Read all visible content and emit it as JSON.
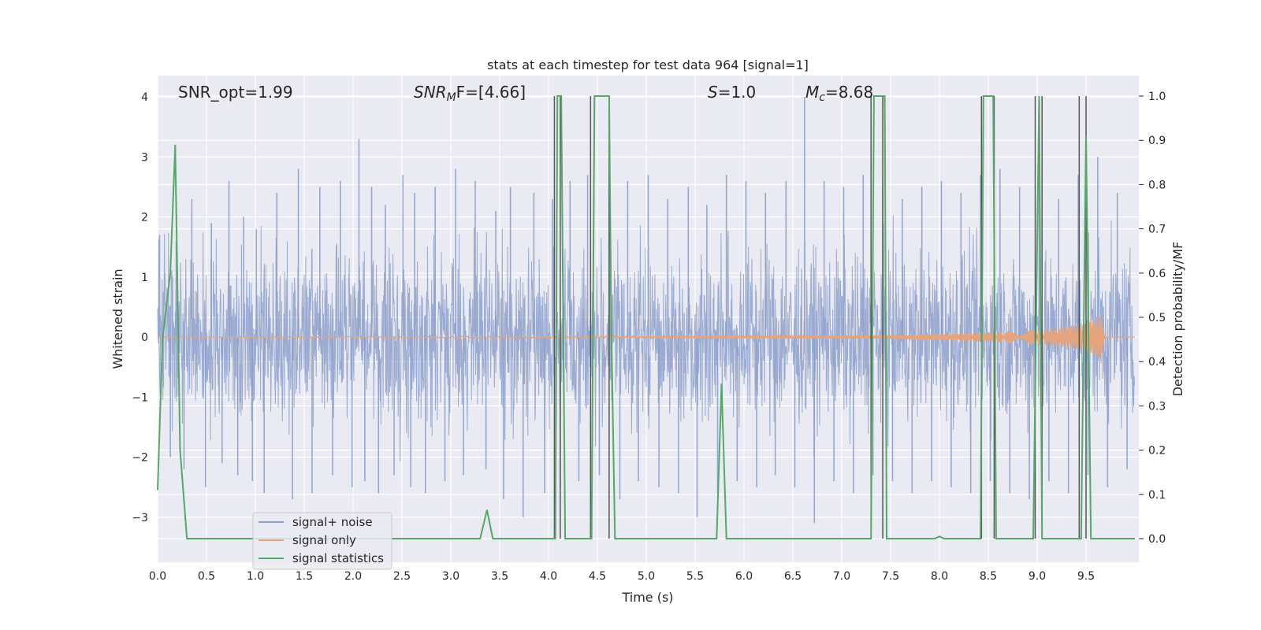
{
  "chart_data": {
    "type": "line",
    "title": "stats at each timestep for test data 964 [signal=1]",
    "xlabel": "Time (s)",
    "ylabel_left": "Whitened strain",
    "ylabel_right": "Detection probability/MF",
    "xlim": [
      0.0,
      10.0
    ],
    "ylim_left": [
      -3.6,
      4.4
    ],
    "ylim_right": [
      -0.05,
      1.05
    ],
    "x_ticks": [
      "0.0",
      "0.5",
      "1.0",
      "1.5",
      "2.0",
      "2.5",
      "3.0",
      "3.5",
      "4.0",
      "4.5",
      "5.0",
      "5.5",
      "6.0",
      "6.5",
      "7.0",
      "7.5",
      "8.0",
      "8.5",
      "9.0",
      "9.5"
    ],
    "y_ticks_left": [
      "4",
      "3",
      "2",
      "1",
      "0",
      "−1",
      "−2",
      "−3"
    ],
    "y_ticks_right": [
      "1.0",
      "0.9",
      "0.8",
      "0.7",
      "0.6",
      "0.5",
      "0.4",
      "0.3",
      "0.2",
      "0.1",
      "0.0"
    ],
    "grid": true,
    "background": "#eaeaf2",
    "annotations": {
      "snr_opt": "SNR_opt=1.99",
      "snr_mf_name": "SNR",
      "snr_mf_sub": "M",
      "snr_mf_rest": "F=[4.66]",
      "s_name": "S",
      "s_rest": "=1.0",
      "mc_name": "M",
      "mc_sub": "c",
      "mc_rest": "=8.68"
    },
    "legend_position": "lower-left",
    "series": [
      {
        "name": "signal+ noise",
        "color": "#8da0cb",
        "axis": "left",
        "description_values": "whitened noise envelope approx ±1.8 with spikes to ±3.3",
        "values_x": [
          0.02,
          0.13,
          0.19,
          0.27,
          0.35,
          0.49,
          0.55,
          0.66,
          0.73,
          0.82,
          0.88,
          0.97,
          1.01,
          1.09,
          1.22,
          1.38,
          1.44,
          1.58,
          1.66,
          1.79,
          1.87,
          1.99,
          2.06,
          2.12,
          2.19,
          2.26,
          2.33,
          2.42,
          2.51,
          2.59,
          2.63,
          2.74,
          2.84,
          2.94,
          3.05,
          3.13,
          3.25,
          3.36,
          3.46,
          3.54,
          3.61,
          3.74,
          3.85,
          3.96,
          4.04,
          4.12,
          4.22,
          4.31,
          4.4,
          4.52,
          4.62,
          4.73,
          4.81,
          4.92,
          5.02,
          5.13,
          5.22,
          5.33,
          5.43,
          5.52,
          5.62,
          5.73,
          5.82,
          5.93,
          6.02,
          6.13,
          6.22,
          6.32,
          6.43,
          6.52,
          6.62,
          6.72,
          6.82,
          6.92,
          7.02,
          7.12,
          7.22,
          7.32,
          7.42,
          7.52,
          7.62,
          7.72,
          7.82,
          7.92,
          8.02,
          8.12,
          8.22,
          8.32,
          8.42,
          8.52,
          8.62,
          8.72,
          8.82,
          8.92,
          9.02,
          9.12,
          9.22,
          9.32,
          9.42,
          9.52,
          9.62,
          9.72,
          9.82,
          9.92
        ],
        "values_y": [
          1.7,
          -2.0,
          1.6,
          -2.2,
          2.3,
          -2.5,
          1.9,
          -2.1,
          2.6,
          -2.3,
          2.0,
          -2.4,
          1.8,
          -2.6,
          2.4,
          -2.7,
          2.8,
          -2.6,
          2.5,
          -2.3,
          2.6,
          -2.5,
          3.3,
          -2.4,
          2.5,
          -2.6,
          2.2,
          -2.3,
          2.7,
          -2.5,
          2.4,
          -2.6,
          2.5,
          -2.4,
          2.8,
          -2.3,
          2.6,
          -2.2,
          2.1,
          -2.7,
          2.5,
          -3.0,
          2.4,
          -2.6,
          2.3,
          -2.5,
          2.6,
          -2.4,
          2.7,
          -2.3,
          2.8,
          -2.7,
          2.6,
          -2.4,
          2.7,
          -2.5,
          2.3,
          -2.6,
          2.5,
          -3.0,
          2.2,
          -2.6,
          2.7,
          -2.4,
          2.6,
          -2.5,
          2.4,
          -2.3,
          2.6,
          -2.5,
          4.0,
          -3.1,
          2.6,
          -2.4,
          2.5,
          -2.6,
          2.7,
          -2.3,
          2.6,
          -2.4,
          2.3,
          -2.6,
          2.5,
          -2.4,
          2.6,
          -2.5,
          2.4,
          -2.6,
          2.7,
          -2.4,
          2.8,
          -2.6,
          2.5,
          -2.7,
          2.6,
          -2.4,
          2.3,
          -2.6,
          2.7,
          -2.3,
          3.0,
          -2.5,
          2.4,
          -2.2
        ]
      },
      {
        "name": "signal only",
        "color": "#e5a47c",
        "axis": "left",
        "x": [
          0.0,
          7.0,
          7.5,
          8.0,
          8.5,
          9.0,
          9.2,
          9.4,
          9.55,
          9.6,
          9.65,
          9.68,
          9.7,
          10.0
        ],
        "envelope": [
          0.0,
          0.02,
          0.03,
          0.05,
          0.08,
          0.12,
          0.15,
          0.2,
          0.28,
          0.33,
          0.38,
          0.1,
          0.0,
          0.0
        ]
      },
      {
        "name": "signal statistics",
        "color": "#55a868",
        "axis": "right",
        "x": [
          0.0,
          0.05,
          0.13,
          0.18,
          0.23,
          0.3,
          0.35,
          3.3,
          3.37,
          3.43,
          3.5,
          4.07,
          4.09,
          4.13,
          4.17,
          4.2,
          4.44,
          4.47,
          4.5,
          4.62,
          4.64,
          4.68,
          4.75,
          5.72,
          5.77,
          5.82,
          7.3,
          7.33,
          7.38,
          7.44,
          7.46,
          7.5,
          7.95,
          8.0,
          8.05,
          8.42,
          8.45,
          8.5,
          8.55,
          8.58,
          8.62,
          8.96,
          9.02,
          9.05,
          9.1,
          9.45,
          9.5,
          9.55,
          10.0
        ],
        "y": [
          0.11,
          0.45,
          0.6,
          0.89,
          0.2,
          0.0,
          0.0,
          0.0,
          0.065,
          0.0,
          0.0,
          0.0,
          1.0,
          1.0,
          0.0,
          0.0,
          0.0,
          1.0,
          1.0,
          1.0,
          0.5,
          0.0,
          0.0,
          0.0,
          0.35,
          0.0,
          0.0,
          1.0,
          1.0,
          1.0,
          0.0,
          0.0,
          0.0,
          0.005,
          0.0,
          0.0,
          1.0,
          1.0,
          1.0,
          0.0,
          0.0,
          0.0,
          1.0,
          0.0,
          0.0,
          0.0,
          0.91,
          0.0,
          0.0
        ]
      }
    ],
    "vertical_lines_x": [
      4.06,
      4.12,
      4.43,
      4.62,
      7.3,
      7.42,
      8.43,
      8.56,
      8.98,
      9.05,
      9.43,
      9.5
    ],
    "vertical_line_color": "#555555"
  }
}
